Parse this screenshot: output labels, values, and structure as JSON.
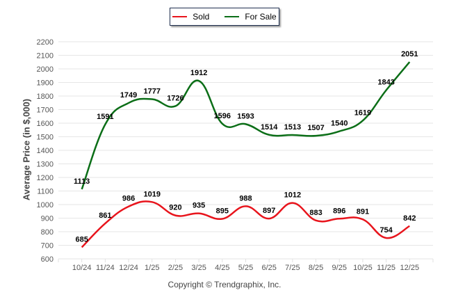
{
  "chart_data": {
    "type": "line",
    "title": "",
    "xlabel": "",
    "ylabel": "Average Price (in $,000)",
    "categories": [
      "10/24",
      "11/24",
      "12/24",
      "1/25",
      "2/25",
      "3/25",
      "4/25",
      "5/25",
      "6/25",
      "7/25",
      "8/25",
      "9/25",
      "10/25",
      "11/25",
      "12/25"
    ],
    "ylim": [
      600,
      2200
    ],
    "yticks": [
      600,
      700,
      800,
      900,
      1000,
      1100,
      1200,
      1300,
      1400,
      1500,
      1600,
      1700,
      1800,
      1900,
      2000,
      2100,
      2200
    ],
    "grid": true,
    "legend_position": "top-center",
    "series": [
      {
        "name": "Sold",
        "color": "#e8141c",
        "values": [
          685,
          861,
          986,
          1019,
          920,
          935,
          895,
          988,
          897,
          1012,
          883,
          896,
          891,
          754,
          842
        ]
      },
      {
        "name": "For Sale",
        "color": "#0b6e17",
        "values": [
          1113,
          1591,
          1749,
          1777,
          1726,
          1912,
          1596,
          1593,
          1514,
          1513,
          1507,
          1540,
          1619,
          1843,
          2051
        ]
      }
    ],
    "footer": "Copyright © Trendgraphix, Inc."
  }
}
